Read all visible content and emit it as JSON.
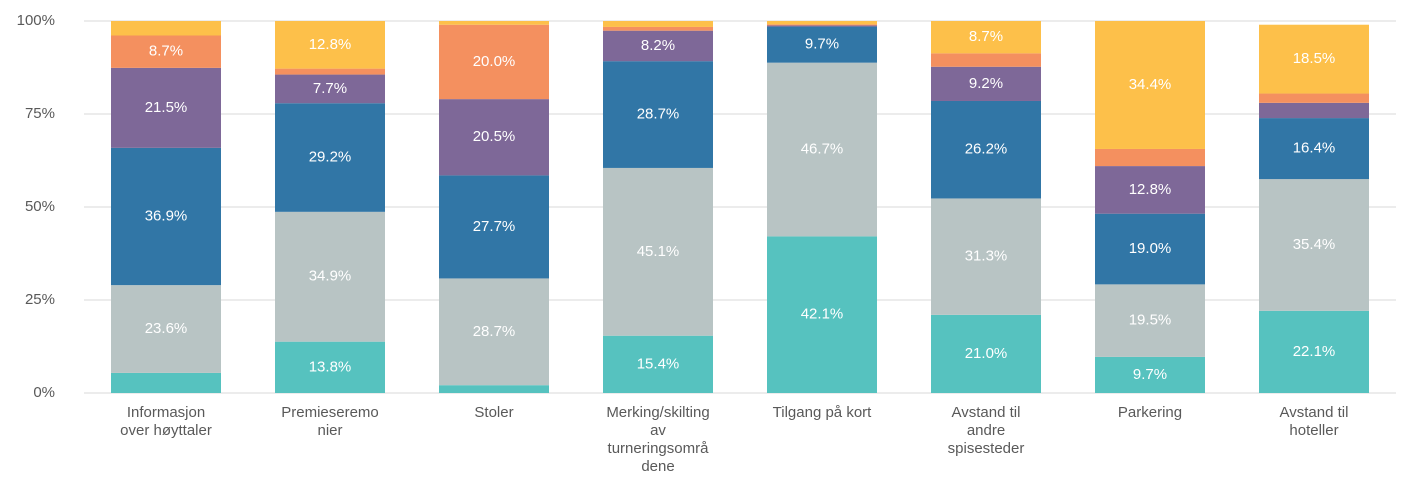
{
  "chart_data": {
    "type": "stacked_bar_percent",
    "categories": [
      "Informasjon over høyttaler",
      "Premieseremonier",
      "Stoler",
      "Merking/skilting av turneringsområdene",
      "Tilgang på kort",
      "Avstand til andre spisesteder",
      "Parkering",
      "Avstand til hoteller"
    ],
    "series": [
      {
        "color": "#56c2bf",
        "values": [
          5.4,
          13.8,
          2.1,
          15.4,
          42.1,
          21.0,
          9.7,
          22.1
        ],
        "value_labels": [
          null,
          "13.8%",
          null,
          "15.4%",
          "42.1%",
          "21.0%",
          "9.7%",
          "22.1%"
        ]
      },
      {
        "color": "#b8c4c4",
        "values": [
          23.6,
          34.9,
          28.7,
          45.1,
          46.7,
          31.3,
          19.5,
          35.4
        ],
        "value_labels": [
          "23.6%",
          "34.9%",
          "28.7%",
          "45.1%",
          "46.7%",
          "31.3%",
          "19.5%",
          "35.4%"
        ]
      },
      {
        "color": "#3176a6",
        "values": [
          36.9,
          29.2,
          27.7,
          28.7,
          9.7,
          26.2,
          19.0,
          16.4
        ],
        "value_labels": [
          "36.9%",
          "29.2%",
          "27.7%",
          "28.7%",
          "9.7%",
          "26.2%",
          "19.0%",
          "16.4%"
        ]
      },
      {
        "color": "#7e6898",
        "values": [
          21.5,
          7.7,
          20.5,
          8.2,
          0.3,
          9.2,
          12.8,
          4.1
        ],
        "value_labels": [
          "21.5%",
          "7.7%",
          "20.5%",
          "8.2%",
          null,
          "9.2%",
          "12.8%",
          null
        ]
      },
      {
        "color": "#f4905f",
        "values": [
          8.7,
          1.6,
          20.0,
          1.0,
          0.3,
          3.6,
          4.6,
          2.5
        ],
        "value_labels": [
          "8.7%",
          null,
          "20.0%",
          null,
          null,
          null,
          null,
          null
        ]
      },
      {
        "color": "#fdc04a",
        "values": [
          3.9,
          12.8,
          1.0,
          1.6,
          0.9,
          8.7,
          34.4,
          18.5
        ],
        "value_labels": [
          null,
          "12.8%",
          null,
          null,
          null,
          "8.7%",
          "34.4%",
          "18.5%"
        ]
      }
    ],
    "ylim": [
      0,
      100
    ],
    "yticks": [
      {
        "value": 0,
        "label": "0%"
      },
      {
        "value": 25,
        "label": "25%"
      },
      {
        "value": 50,
        "label": "50%"
      },
      {
        "value": 75,
        "label": "75%"
      },
      {
        "value": 100,
        "label": "100%"
      }
    ],
    "grid": true
  }
}
